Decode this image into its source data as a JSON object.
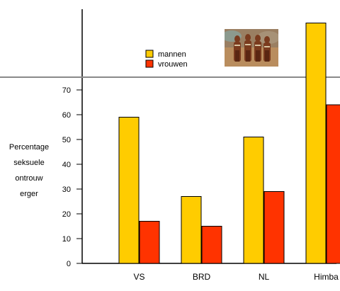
{
  "chart_data": {
    "type": "bar",
    "categories": [
      "VS",
      "BRD",
      "NL",
      "Himba"
    ],
    "series": [
      {
        "name": "mannen",
        "values": [
          59,
          27,
          51,
          97
        ],
        "color": "#ffcc00"
      },
      {
        "name": "vrouwen",
        "values": [
          17,
          15,
          29,
          64
        ],
        "color": "#ff3300"
      }
    ],
    "ylabel_lines": [
      "Percentage",
      "seksuele",
      "ontrouw",
      "erger"
    ],
    "yticks": [
      0,
      10,
      20,
      30,
      40,
      50,
      60,
      70
    ],
    "ylim": [
      0,
      100
    ],
    "legend_position": "top-center",
    "grid": false
  }
}
